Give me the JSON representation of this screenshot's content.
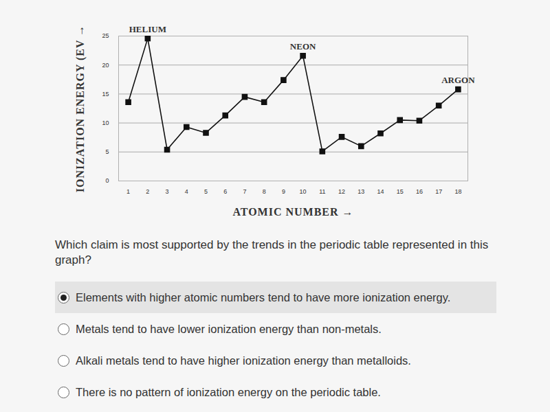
{
  "chart_data": {
    "type": "line",
    "x_label": "ATOMIC NUMBER",
    "y_label": "IONIZATION ENERGY (EV",
    "x": [
      1,
      2,
      3,
      4,
      5,
      6,
      7,
      8,
      9,
      10,
      11,
      12,
      13,
      14,
      15,
      16,
      17,
      18
    ],
    "values": [
      13.6,
      24.6,
      5.4,
      9.3,
      8.3,
      11.3,
      14.5,
      13.6,
      17.4,
      21.6,
      5.1,
      7.6,
      6.0,
      8.2,
      10.5,
      10.4,
      13.0,
      15.8
    ],
    "color": "#111111",
    "marker": "square",
    "xlim": [
      0.5,
      18.5
    ],
    "xticks": [
      1,
      2,
      3,
      4,
      5,
      6,
      7,
      8,
      9,
      10,
      11,
      12,
      13,
      14,
      15,
      16,
      17,
      18
    ],
    "ylim": [
      0,
      25
    ],
    "yticks": [
      0,
      5,
      10,
      15,
      20,
      25
    ],
    "grid": true,
    "annotations": [
      {
        "text": "HELIUM",
        "x": 2
      },
      {
        "text": "NEON",
        "x": 10
      },
      {
        "text": "ARGON",
        "x": 18
      }
    ]
  },
  "question": {
    "text": "Which claim is most supported by the trends in the periodic table represented in this graph?",
    "options": [
      "Elements with higher atomic numbers tend to have more ionization energy.",
      "Metals tend to have lower ionization energy than non-metals.",
      "Alkali metals tend to have higher ionization energy than metalloids.",
      "There is no pattern of ionization energy on the periodic table."
    ],
    "selected": 0
  }
}
